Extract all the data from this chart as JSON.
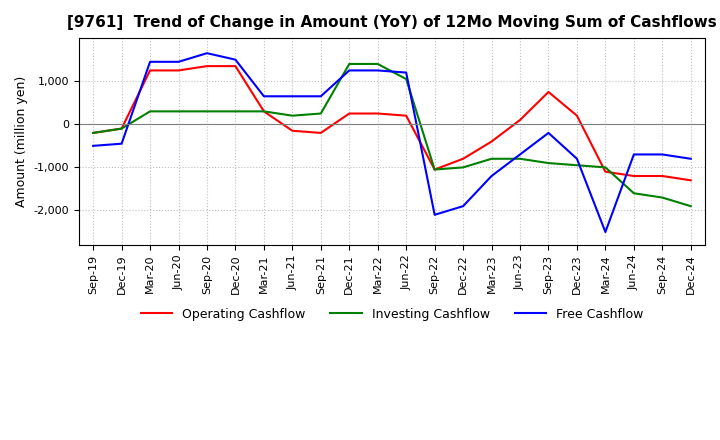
{
  "title": "[9761]  Trend of Change in Amount (YoY) of 12Mo Moving Sum of Cashflows",
  "ylabel": "Amount (million yen)",
  "x_labels": [
    "Sep-19",
    "Dec-19",
    "Mar-20",
    "Jun-20",
    "Sep-20",
    "Dec-20",
    "Mar-21",
    "Jun-21",
    "Sep-21",
    "Dec-21",
    "Mar-22",
    "Jun-22",
    "Sep-22",
    "Dec-22",
    "Mar-23",
    "Jun-23",
    "Sep-23",
    "Dec-23",
    "Mar-24",
    "Jun-24",
    "Sep-24",
    "Dec-24"
  ],
  "operating": [
    -200,
    -100,
    1250,
    1250,
    1350,
    1350,
    300,
    -150,
    -200,
    250,
    250,
    200,
    -1050,
    -800,
    -400,
    100,
    750,
    200,
    -1100,
    -1200,
    -1200,
    -1300
  ],
  "investing": [
    -200,
    -100,
    300,
    300,
    300,
    300,
    300,
    200,
    250,
    1400,
    1400,
    1050,
    -1050,
    -1000,
    -800,
    -800,
    -900,
    -950,
    -1000,
    -1600,
    -1700,
    -1900
  ],
  "free": [
    -500,
    -450,
    1450,
    1450,
    1650,
    1500,
    650,
    650,
    650,
    1250,
    1250,
    1200,
    -2100,
    -1900,
    -1200,
    -700,
    -200,
    -800,
    -2500,
    -700,
    -700,
    -800
  ],
  "operating_color": "#FF0000",
  "investing_color": "#008000",
  "free_color": "#0000FF",
  "ylim": [
    -2800,
    2000
  ],
  "yticks": [
    -2000,
    -1000,
    0,
    1000
  ],
  "background_color": "#FFFFFF",
  "grid_color": "#C0C0C0",
  "title_fontsize": 11,
  "label_fontsize": 9,
  "tick_fontsize": 8
}
